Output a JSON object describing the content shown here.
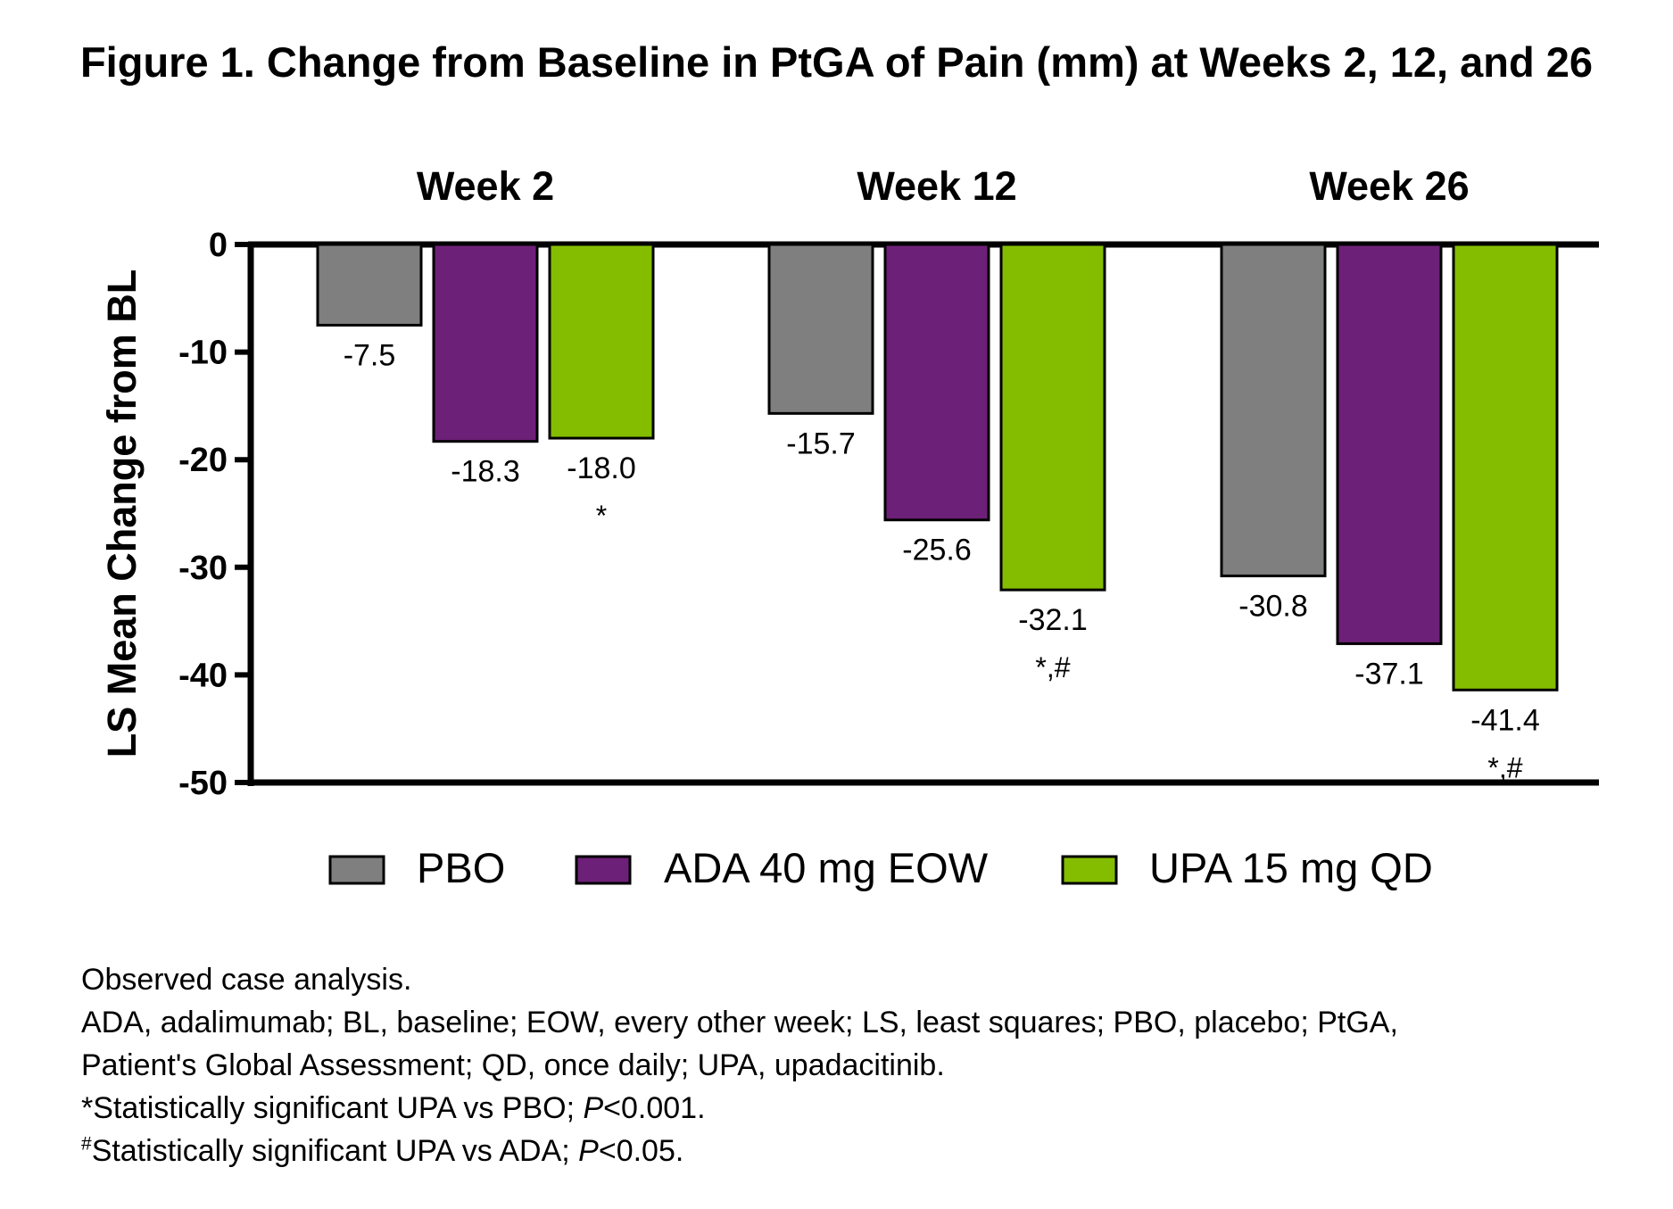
{
  "chart_data": {
    "type": "bar",
    "title": "Figure 1. Change from Baseline in PtGA of Pain (mm) at Weeks 2, 12, and 26",
    "ylabel": "LS Mean Change from BL",
    "xlabel": "",
    "ylim": [
      -50,
      0
    ],
    "yticks": [
      0,
      -10,
      -20,
      -30,
      -40,
      -50
    ],
    "ytick_labels": [
      "0",
      "-10",
      "-20",
      "-30",
      "-40",
      "-50"
    ],
    "grid": false,
    "legend_position": "bottom",
    "categories": [
      "Week 2",
      "Week 12",
      "Week 26"
    ],
    "series": [
      {
        "name": "PBO",
        "color": "#7f7f7f",
        "values": [
          -7.5,
          -15.7,
          -30.8
        ],
        "labels": [
          "-7.5",
          "-15.7",
          "-30.8"
        ],
        "annotations": [
          "",
          "",
          ""
        ]
      },
      {
        "name": "ADA 40 mg EOW",
        "color": "#6d2077",
        "values": [
          -18.3,
          -25.6,
          -37.1
        ],
        "labels": [
          "-18.3",
          "-25.6",
          "-37.1"
        ],
        "annotations": [
          "",
          "",
          ""
        ]
      },
      {
        "name": "UPA 15 mg QD",
        "color": "#84bd00",
        "values": [
          -18.0,
          -32.1,
          -41.4
        ],
        "labels": [
          "-18.0",
          "-32.1",
          "-41.4"
        ],
        "annotations": [
          "*",
          "*,#",
          "*,#"
        ]
      }
    ]
  },
  "footnotes": {
    "line1": "Observed case analysis.",
    "line2": "ADA, adalimumab; BL, baseline; EOW, every other week; LS, least squares; PBO, placebo; PtGA,",
    "line3": "Patient's Global Assessment; QD, once daily; UPA, upadacitinib.",
    "line4_prefix": "*Statistically significant UPA vs PBO; ",
    "line4_p": "P",
    "line4_suffix": "<0.001.",
    "line5_mark": "#",
    "line5_prefix": "Statistically significant UPA vs ADA; ",
    "line5_p": "P",
    "line5_suffix": "<0.05."
  }
}
